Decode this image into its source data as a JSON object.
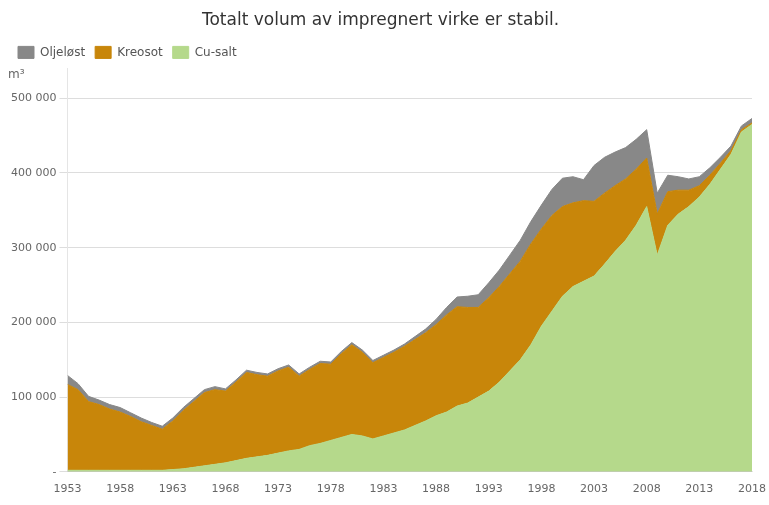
{
  "chart_data": {
    "type": "area",
    "title": "Totalt volum av impregnert virke er stabil.",
    "ylabel": "m³",
    "x": [
      1953,
      1954,
      1955,
      1956,
      1957,
      1958,
      1959,
      1960,
      1961,
      1962,
      1963,
      1964,
      1965,
      1966,
      1967,
      1968,
      1969,
      1970,
      1971,
      1972,
      1973,
      1974,
      1975,
      1976,
      1977,
      1978,
      1979,
      1980,
      1981,
      1982,
      1983,
      1984,
      1985,
      1986,
      1987,
      1988,
      1989,
      1990,
      1991,
      1992,
      1993,
      1994,
      1995,
      1996,
      1997,
      1998,
      1999,
      2000,
      2001,
      2002,
      2003,
      2004,
      2005,
      2006,
      2007,
      2008,
      2009,
      2010,
      2011,
      2012,
      2013,
      2014,
      2015,
      2016,
      2017,
      2018
    ],
    "series": [
      {
        "name": "Cu-salt",
        "color": "#B5D98B",
        "values": [
          2000,
          2000,
          2000,
          2000,
          2000,
          2000,
          2000,
          2000,
          2000,
          2000,
          3000,
          4000,
          6000,
          8000,
          10000,
          12000,
          15000,
          18000,
          20000,
          22000,
          25000,
          28000,
          30000,
          35000,
          38000,
          42000,
          46000,
          50000,
          48000,
          44000,
          48000,
          52000,
          56000,
          62000,
          68000,
          75000,
          80000,
          88000,
          92000,
          100000,
          108000,
          120000,
          135000,
          150000,
          170000,
          195000,
          215000,
          235000,
          248000,
          255000,
          262000,
          278000,
          295000,
          310000,
          330000,
          355000,
          290000,
          330000,
          345000,
          355000,
          368000,
          385000,
          405000,
          425000,
          455000,
          465000
        ]
      },
      {
        "name": "Kreosot",
        "color": "#C8860A",
        "values": [
          115000,
          108000,
          92000,
          88000,
          82000,
          78000,
          72000,
          65000,
          60000,
          55000,
          65000,
          78000,
          88000,
          98000,
          100000,
          96000,
          105000,
          115000,
          110000,
          106000,
          110000,
          112000,
          98000,
          102000,
          107000,
          102000,
          112000,
          120000,
          112000,
          102000,
          105000,
          108000,
          112000,
          115000,
          118000,
          122000,
          130000,
          133000,
          128000,
          120000,
          125000,
          128000,
          130000,
          132000,
          135000,
          130000,
          128000,
          120000,
          112000,
          108000,
          100000,
          95000,
          88000,
          82000,
          75000,
          65000,
          55000,
          45000,
          32000,
          22000,
          15000,
          12000,
          8000,
          5000,
          3000,
          2000
        ]
      },
      {
        "name": "Oljeløst",
        "color": "#888888",
        "values": [
          12000,
          8000,
          7000,
          6000,
          6000,
          6000,
          5000,
          5000,
          4000,
          4000,
          4000,
          4000,
          4000,
          4000,
          4000,
          3000,
          3000,
          3000,
          3000,
          3000,
          3000,
          3000,
          3000,
          3000,
          3000,
          3000,
          3000,
          3000,
          3000,
          3000,
          3000,
          3000,
          3000,
          4000,
          5000,
          7000,
          10000,
          13000,
          15000,
          17000,
          20000,
          22000,
          25000,
          28000,
          30000,
          32000,
          35000,
          38000,
          35000,
          28000,
          48000,
          48000,
          45000,
          42000,
          40000,
          38000,
          28000,
          22000,
          18000,
          15000,
          12000,
          10000,
          8000,
          6000,
          5000,
          6000
        ]
      }
    ],
    "stacked": true,
    "xlim": [
      1953,
      2018
    ],
    "xticks": [
      1953,
      1958,
      1963,
      1968,
      1973,
      1978,
      1983,
      1988,
      1993,
      1998,
      2003,
      2008,
      2013,
      2018
    ],
    "ylim": [
      0,
      540000
    ],
    "yticks": [
      {
        "value": 0,
        "label": "-"
      },
      {
        "value": 100000,
        "label": "100 000"
      },
      {
        "value": 200000,
        "label": "200 000"
      },
      {
        "value": 300000,
        "label": "300 000"
      },
      {
        "value": 400000,
        "label": "400 000"
      },
      {
        "value": 500000,
        "label": "500 000"
      }
    ],
    "grid": "y",
    "legend": "upper left"
  }
}
